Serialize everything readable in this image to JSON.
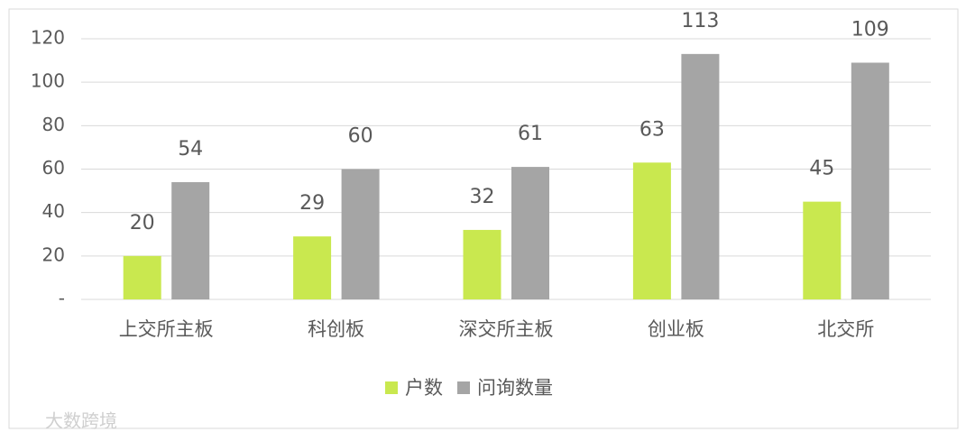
{
  "chart_data": {
    "type": "bar",
    "categories": [
      "上交所主板",
      "科创板",
      "深交所主板",
      "创业板",
      "北交所"
    ],
    "series": [
      {
        "name": "户数",
        "color": "#c9e84f",
        "values": [
          20,
          29,
          32,
          63,
          45
        ]
      },
      {
        "name": "问询数量",
        "color": "#a5a5a5",
        "values": [
          54,
          60,
          61,
          113,
          109
        ]
      }
    ],
    "ylim": [
      0,
      120
    ],
    "yticks": [
      {
        "value": 0,
        "label": "-"
      },
      20,
      40,
      60,
      80,
      100,
      120
    ],
    "grid": true,
    "legend": "bottom",
    "watermark": "大数跨境"
  }
}
